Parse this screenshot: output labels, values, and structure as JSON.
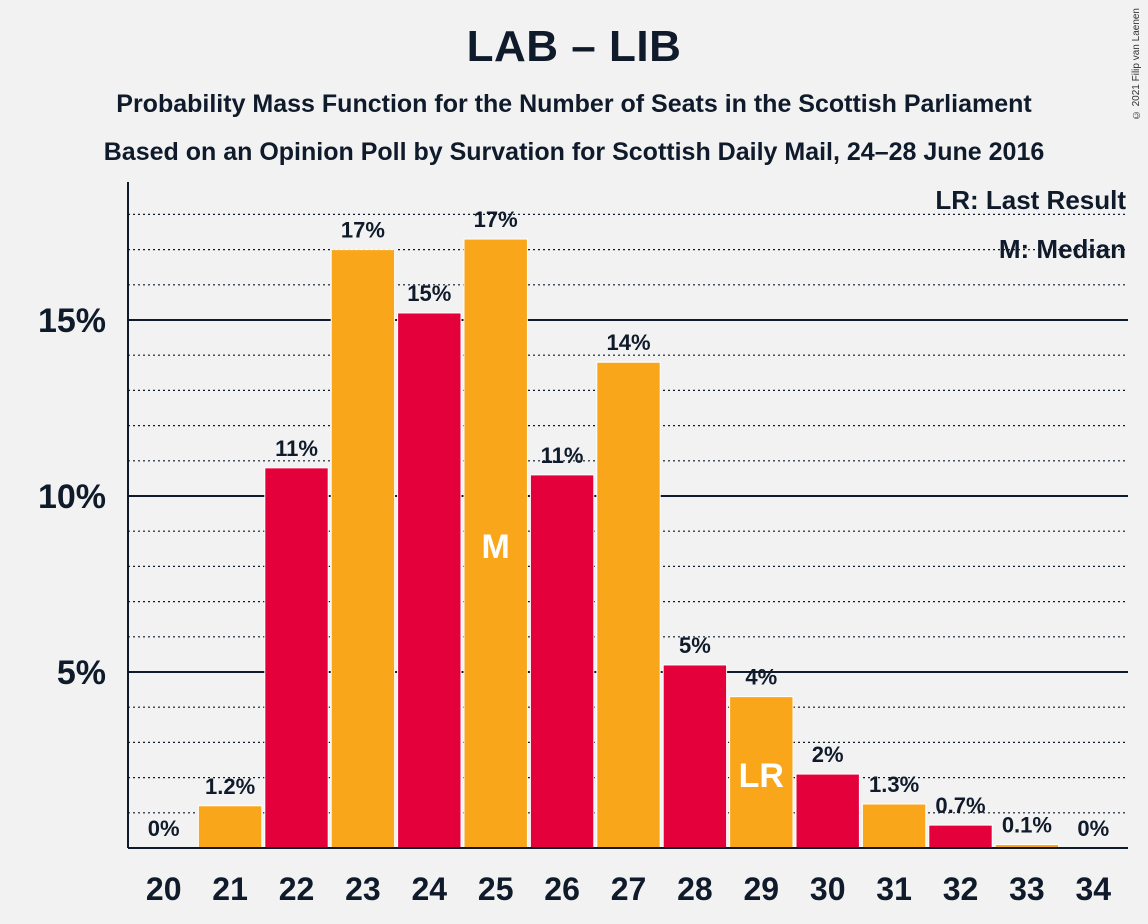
{
  "title": "LAB – LIB",
  "subtitle1": "Probability Mass Function for the Number of Seats in the Scottish Parliament",
  "subtitle2": "Based on an Opinion Poll by Survation for Scottish Daily Mail, 24–28 June 2016",
  "copyright": "© 2021 Filip van Laenen",
  "legend": {
    "last_result": "LR: Last Result",
    "median": "M: Median"
  },
  "colors": {
    "lab": "#E4003B",
    "lib": "#FAA61A",
    "background": "#f2f2f2",
    "text": "#0f1a2a"
  },
  "chart_data": {
    "type": "bar",
    "categories": [
      "20",
      "21",
      "22",
      "23",
      "24",
      "25",
      "26",
      "27",
      "28",
      "29",
      "30",
      "31",
      "32",
      "33",
      "34"
    ],
    "values": [
      0,
      1.2,
      10.8,
      17.0,
      15.2,
      17.3,
      10.6,
      13.8,
      5.2,
      4.3,
      2.1,
      1.25,
      0.65,
      0.1,
      0
    ],
    "data_labels": [
      "0%",
      "1.2%",
      "11%",
      "17%",
      "15%",
      "17%",
      "11%",
      "14%",
      "5%",
      "4%",
      "2%",
      "1.3%",
      "0.7%",
      "0.1%",
      "0%"
    ],
    "bar_colors": [
      "lib",
      "lib",
      "lab",
      "lib",
      "lab",
      "lib",
      "lab",
      "lib",
      "lab",
      "lib",
      "lab",
      "lib",
      "lab",
      "lib",
      "lab"
    ],
    "y_ticks": [
      5,
      10,
      15
    ],
    "y_tick_labels": [
      "5%",
      "10%",
      "15%"
    ],
    "ylim": [
      0,
      19
    ],
    "grid": true,
    "median_category": "25",
    "median_label": "M",
    "last_result_category": "29",
    "last_result_label": "LR",
    "legend_placement": "top-right"
  }
}
